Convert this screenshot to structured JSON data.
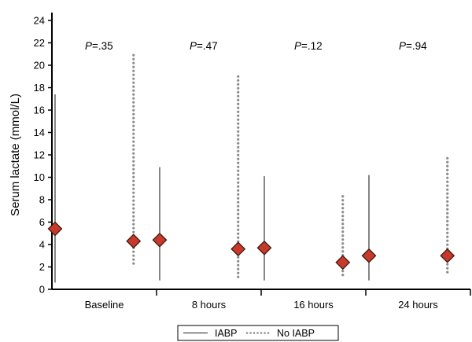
{
  "chart_data": {
    "type": "scatter",
    "ylabel": "Serum lactate (mmol/L)",
    "ylim": [
      0,
      24
    ],
    "yticks": [
      0,
      2,
      4,
      6,
      8,
      10,
      12,
      14,
      16,
      18,
      20,
      22,
      24
    ],
    "categories": [
      "Baseline",
      "8 hours",
      "16 hours",
      "24 hours"
    ],
    "p_values": [
      {
        "prefix": "P",
        "value": "=.35"
      },
      {
        "prefix": "P",
        "value": "=.47"
      },
      {
        "prefix": "P",
        "value": "=.12"
      },
      {
        "prefix": "P",
        "value": "=.94"
      }
    ],
    "series": [
      {
        "name": "IABP",
        "line_style": "solid",
        "median": [
          5.4,
          4.4,
          3.7,
          3.0
        ],
        "low": [
          0.6,
          0.8,
          0.8,
          0.8
        ],
        "high": [
          17.4,
          10.9,
          10.1,
          10.2
        ]
      },
      {
        "name": "No IABP",
        "line_style": "dotted",
        "median": [
          4.3,
          3.6,
          2.4,
          3.0
        ],
        "low": [
          2.0,
          0.8,
          1.1,
          1.2
        ],
        "high": [
          20.9,
          19.0,
          8.3,
          11.7
        ]
      }
    ],
    "marker": {
      "shape": "diamond",
      "fill": "#c8392a",
      "stroke": "#3a1a12"
    },
    "legend": "bottom-center",
    "grid": false
  }
}
